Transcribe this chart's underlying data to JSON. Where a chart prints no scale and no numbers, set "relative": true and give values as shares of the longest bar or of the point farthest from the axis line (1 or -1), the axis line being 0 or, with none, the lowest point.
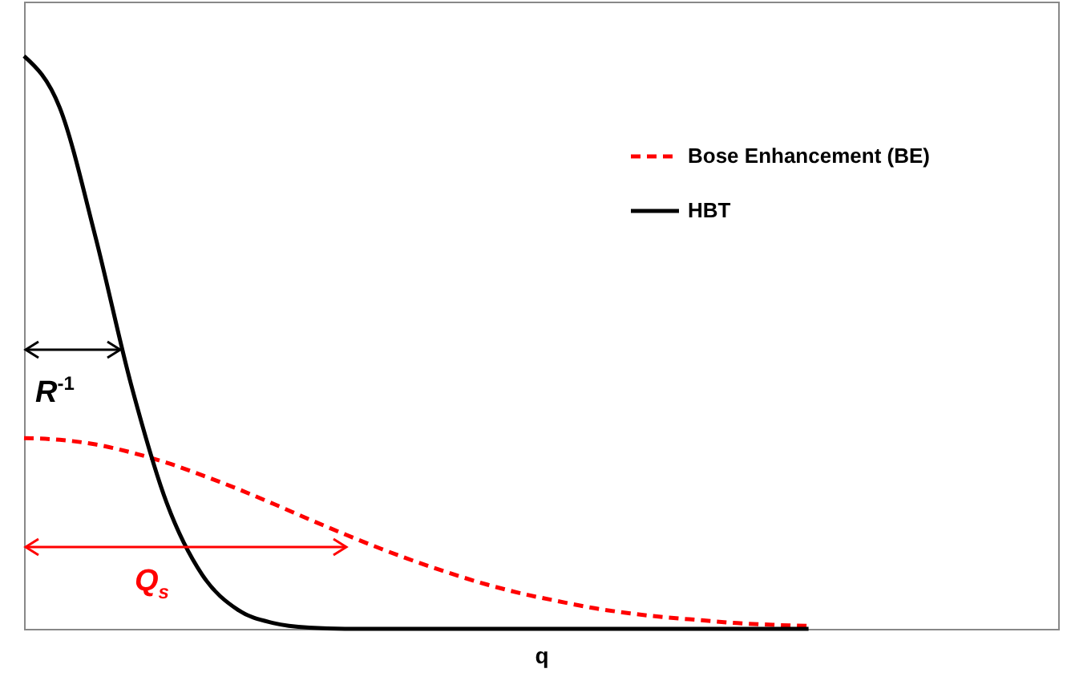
{
  "chart_data": {
    "type": "line",
    "relative": true,
    "xlabel": "q",
    "legend": "top right",
    "categories": [
      null,
      null,
      null,
      null,
      null,
      null,
      null,
      null,
      null,
      null,
      null,
      null,
      null,
      null,
      null,
      null,
      null,
      null,
      null,
      null,
      null,
      null,
      null,
      null,
      null,
      null,
      null,
      null,
      null,
      null
    ],
    "series": [
      {
        "name": "Bose Enhancement (BE)",
        "color": "#ff0000",
        "line_style": "dashed",
        "values": [
          0.333,
          0.33,
          0.322,
          0.308,
          0.29,
          0.268,
          0.244,
          0.218,
          0.191,
          0.165,
          0.14,
          0.117,
          0.096,
          0.077,
          0.061,
          0.048,
          0.036,
          0.027,
          0.02,
          0.015,
          0.01,
          0.007,
          0.005,
          null,
          null,
          null,
          null,
          null,
          null,
          null
        ]
      },
      {
        "name": "HBT",
        "color": "#000000",
        "line_style": "solid",
        "values": [
          1,
          0.91,
          0.685,
          0.427,
          0.22,
          0.094,
          0.033,
          0.01,
          0.002,
          0,
          0,
          0,
          0,
          0,
          0,
          0,
          0,
          0,
          0,
          0,
          0,
          0,
          0,
          null,
          null,
          null,
          null,
          null,
          null,
          null
        ]
      }
    ],
    "annotations": [
      "R$^{-1}$",
      "Q$_{s}$"
    ]
  }
}
